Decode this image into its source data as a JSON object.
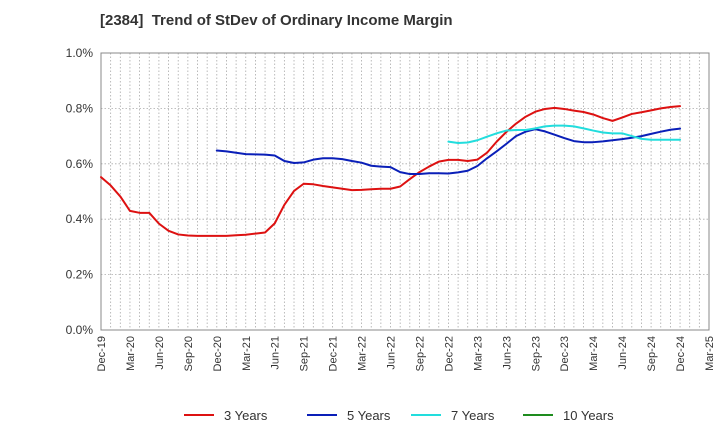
{
  "chart_data": {
    "type": "line",
    "title": "[2384]  Trend of StDev of Ordinary Income Margin",
    "xlabel": "",
    "ylabel": "",
    "y_tick_labels": [
      "0.0%",
      "0.2%",
      "0.4%",
      "0.6%",
      "0.8%",
      "1.0%"
    ],
    "ylim": [
      0,
      1.0
    ],
    "x_tick_labels": [
      "Dec-19",
      "Mar-20",
      "Jun-20",
      "Sep-20",
      "Dec-20",
      "Mar-21",
      "Jun-21",
      "Sep-21",
      "Dec-21",
      "Mar-22",
      "Jun-22",
      "Sep-22",
      "Dec-22",
      "Mar-23",
      "Jun-23",
      "Sep-23",
      "Dec-23",
      "Mar-24",
      "Jun-24",
      "Sep-24",
      "Dec-24",
      "Mar-25"
    ],
    "x_start": "2019-12",
    "x_end": "2025-03",
    "grid": true,
    "legend_position": "bottom",
    "series": [
      {
        "name": "3 Years",
        "color": "#dd1111",
        "x": [
          "2019-12",
          "2020-01",
          "2020-02",
          "2020-03",
          "2020-04",
          "2020-05",
          "2020-06",
          "2020-07",
          "2020-08",
          "2020-09",
          "2020-10",
          "2020-11",
          "2020-12",
          "2021-01",
          "2021-02",
          "2021-03",
          "2021-04",
          "2021-05",
          "2021-06",
          "2021-07",
          "2021-08",
          "2021-09",
          "2021-10",
          "2021-11",
          "2021-12",
          "2022-01",
          "2022-02",
          "2022-03",
          "2022-04",
          "2022-05",
          "2022-06",
          "2022-07",
          "2022-08",
          "2022-09",
          "2022-10",
          "2022-11",
          "2022-12",
          "2023-01",
          "2023-02",
          "2023-03",
          "2023-04",
          "2023-05",
          "2023-06",
          "2023-07",
          "2023-08",
          "2023-09",
          "2023-10",
          "2023-11",
          "2023-12",
          "2024-01",
          "2024-02",
          "2024-03",
          "2024-04",
          "2024-05",
          "2024-06",
          "2024-07",
          "2024-08",
          "2024-09",
          "2024-10",
          "2024-11",
          "2024-12"
        ],
        "values": [
          0.552,
          0.522,
          0.482,
          0.43,
          0.423,
          0.423,
          0.384,
          0.358,
          0.345,
          0.341,
          0.34,
          0.34,
          0.34,
          0.34,
          0.342,
          0.344,
          0.348,
          0.352,
          0.385,
          0.452,
          0.502,
          0.528,
          0.526,
          0.52,
          0.515,
          0.51,
          0.505,
          0.506,
          0.508,
          0.51,
          0.51,
          0.518,
          0.545,
          0.57,
          0.59,
          0.608,
          0.614,
          0.614,
          0.61,
          0.615,
          0.64,
          0.68,
          0.715,
          0.745,
          0.77,
          0.788,
          0.798,
          0.802,
          0.798,
          0.792,
          0.787,
          0.778,
          0.765,
          0.755,
          0.767,
          0.78,
          0.786,
          0.793,
          0.8,
          0.805,
          0.808
        ]
      },
      {
        "name": "5 Years",
        "color": "#0a1fb8",
        "x": [
          "2020-12",
          "2021-01",
          "2021-02",
          "2021-03",
          "2021-04",
          "2021-05",
          "2021-06",
          "2021-07",
          "2021-08",
          "2021-09",
          "2021-10",
          "2021-11",
          "2021-12",
          "2022-01",
          "2022-02",
          "2022-03",
          "2022-04",
          "2022-05",
          "2022-06",
          "2022-07",
          "2022-08",
          "2022-09",
          "2022-10",
          "2022-11",
          "2022-12",
          "2023-01",
          "2023-02",
          "2023-03",
          "2023-04",
          "2023-05",
          "2023-06",
          "2023-07",
          "2023-08",
          "2023-09",
          "2023-10",
          "2023-11",
          "2023-12",
          "2024-01",
          "2024-02",
          "2024-03",
          "2024-04",
          "2024-05",
          "2024-06",
          "2024-07",
          "2024-08",
          "2024-09",
          "2024-10",
          "2024-11",
          "2024-12"
        ],
        "values": [
          0.648,
          0.645,
          0.64,
          0.635,
          0.634,
          0.633,
          0.63,
          0.61,
          0.603,
          0.605,
          0.615,
          0.62,
          0.62,
          0.617,
          0.61,
          0.604,
          0.593,
          0.59,
          0.588,
          0.57,
          0.563,
          0.563,
          0.566,
          0.566,
          0.565,
          0.569,
          0.575,
          0.592,
          0.62,
          0.645,
          0.672,
          0.7,
          0.716,
          0.725,
          0.717,
          0.705,
          0.693,
          0.682,
          0.678,
          0.678,
          0.681,
          0.685,
          0.689,
          0.694,
          0.7,
          0.708,
          0.716,
          0.723,
          0.727
        ]
      },
      {
        "name": "7 Years",
        "color": "#22dddd",
        "x": [
          "2022-12",
          "2023-01",
          "2023-02",
          "2023-03",
          "2023-04",
          "2023-05",
          "2023-06",
          "2023-07",
          "2023-08",
          "2023-09",
          "2023-10",
          "2023-11",
          "2023-12",
          "2024-01",
          "2024-02",
          "2024-03",
          "2024-04",
          "2024-05",
          "2024-06",
          "2024-07",
          "2024-08",
          "2024-09",
          "2024-10",
          "2024-11",
          "2024-12"
        ],
        "values": [
          0.68,
          0.675,
          0.677,
          0.685,
          0.698,
          0.71,
          0.72,
          0.722,
          0.722,
          0.728,
          0.735,
          0.738,
          0.738,
          0.735,
          0.728,
          0.72,
          0.713,
          0.71,
          0.71,
          0.7,
          0.69,
          0.687,
          0.687,
          0.687,
          0.687
        ]
      },
      {
        "name": "10 Years",
        "color": "#1e8c1e",
        "x": [],
        "values": []
      }
    ]
  }
}
